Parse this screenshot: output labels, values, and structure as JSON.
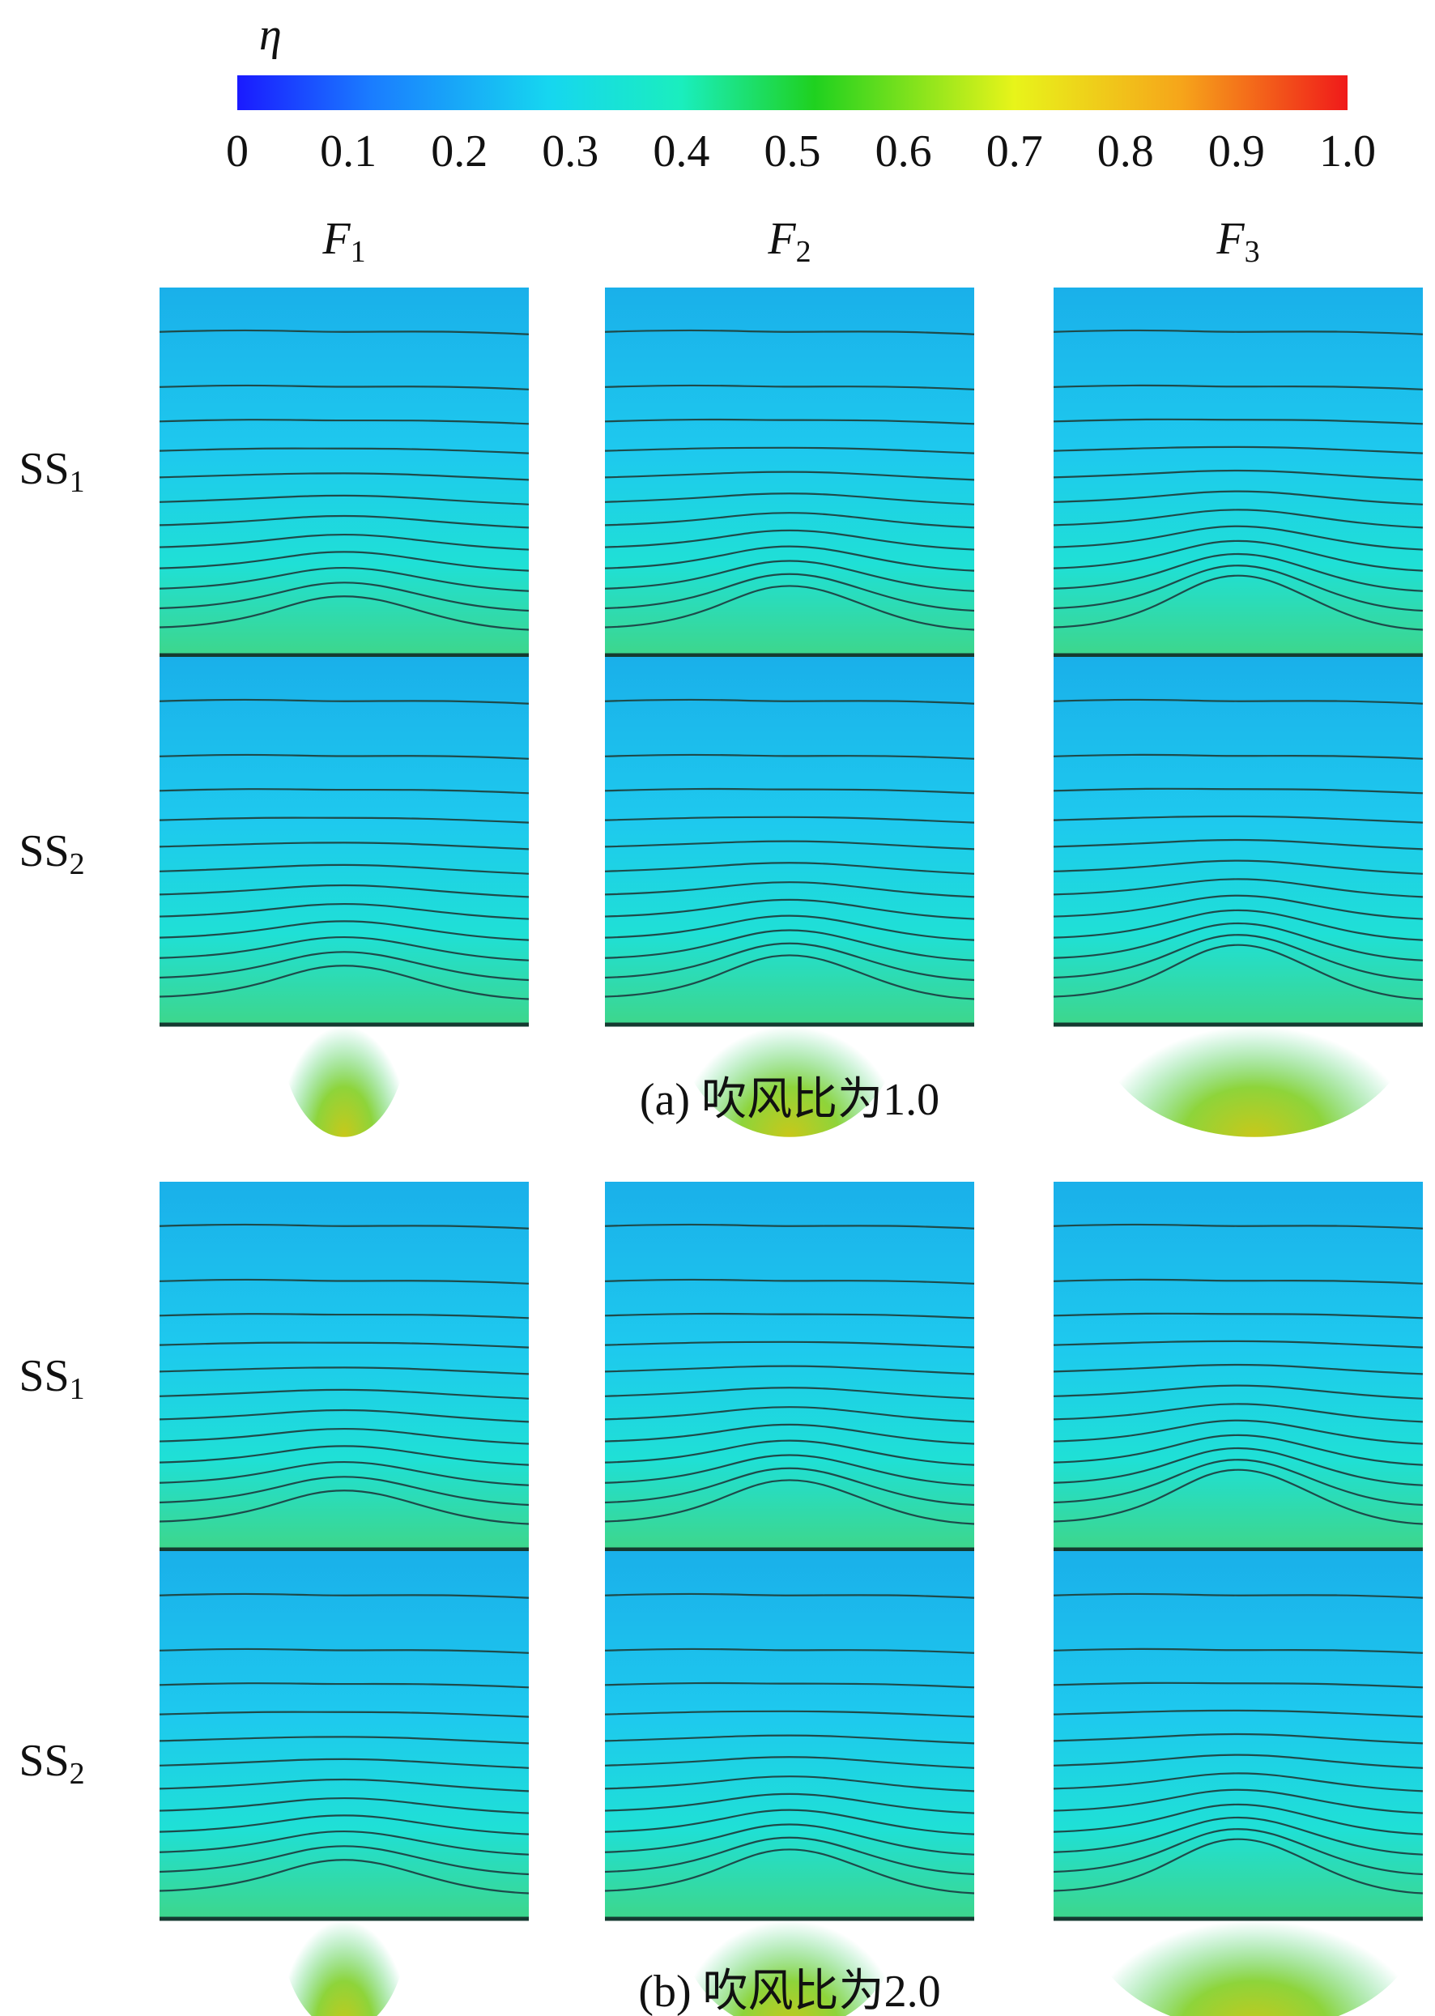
{
  "colorbar": {
    "title": "η",
    "ticks": [
      0,
      0.1,
      0.2,
      0.3,
      0.4,
      0.5,
      0.6,
      0.7,
      0.8,
      0.9,
      {
        "value": 1.0,
        "label": "1.0"
      }
    ]
  },
  "columns": [
    {
      "main": "F",
      "sub": "1"
    },
    {
      "main": "F",
      "sub": "2"
    },
    {
      "main": "F",
      "sub": "3"
    }
  ],
  "groups": [
    {
      "rows": [
        {
          "main": "SS",
          "sub": "1"
        },
        {
          "main": "SS",
          "sub": "2"
        }
      ],
      "caption": "(a) 吹风比为1.0"
    },
    {
      "rows": [
        {
          "main": "SS",
          "sub": "1"
        },
        {
          "main": "SS",
          "sub": "2"
        }
      ],
      "caption": "(b) 吹风比为2.0"
    }
  ]
}
